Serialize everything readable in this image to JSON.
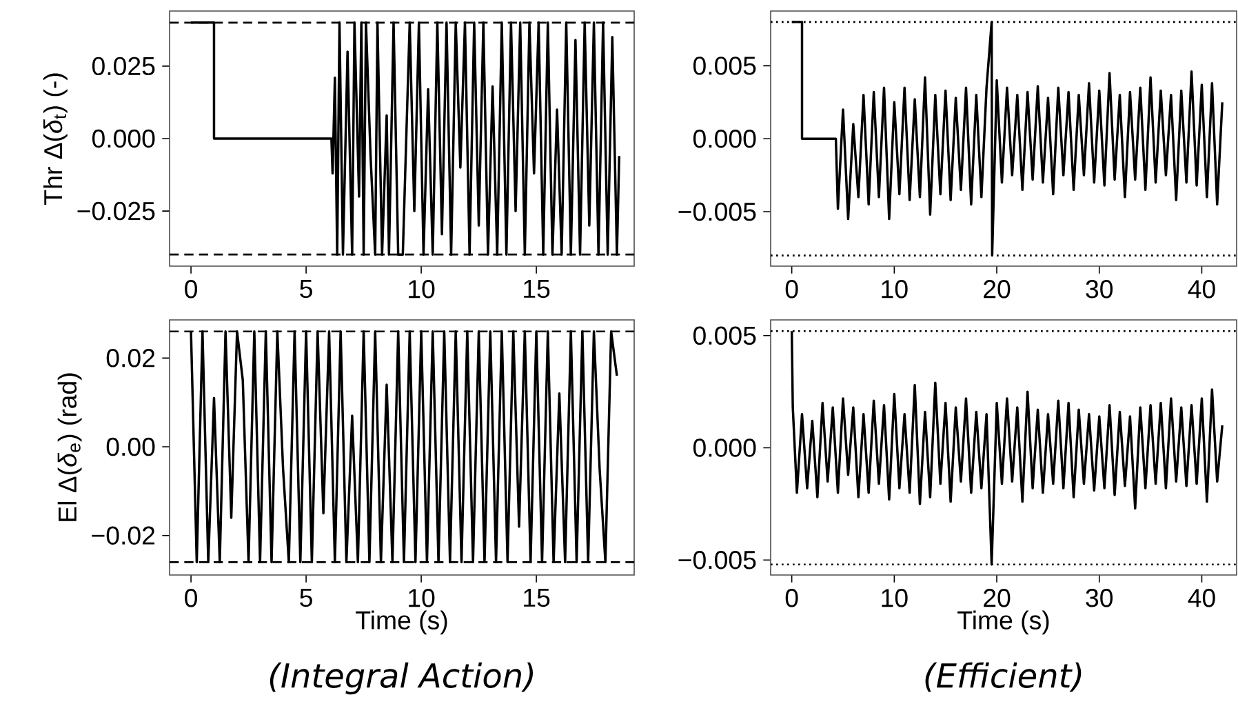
{
  "chart_data": [
    {
      "type": "line",
      "ylabel": "Thr Δ(*δ*$_{t}$) (-)",
      "color": "#000000",
      "x": [
        0,
        1,
        1,
        6.1,
        6.15,
        6.25,
        6.35,
        6.45,
        6.6,
        6.8,
        7.0,
        7.1,
        7.3,
        7.4,
        7.5,
        7.6,
        7.8,
        8.0,
        8.1,
        8.3,
        8.5,
        8.6,
        8.8,
        9.0,
        9.2,
        9.5,
        9.7,
        9.9,
        10.1,
        10.3,
        10.5,
        10.7,
        10.9,
        11.1,
        11.3,
        11.5,
        11.7,
        11.9,
        12.1,
        12.3,
        12.5,
        12.7,
        12.9,
        13.1,
        13.3,
        13.5,
        13.7,
        13.9,
        14.1,
        14.3,
        14.5,
        14.7,
        14.9,
        15.1,
        15.3,
        15.5,
        15.7,
        15.9,
        16.1,
        16.3,
        16.5,
        16.7,
        16.9,
        17.1,
        17.3,
        17.5,
        17.7,
        17.9,
        18.1,
        18.3,
        18.5,
        18.6
      ],
      "values": [
        0.04,
        0.04,
        0,
        0,
        -0.012,
        0.021,
        -0.04,
        0.04,
        -0.04,
        0.03,
        -0.04,
        0.04,
        -0.02,
        0.04,
        -0.04,
        0.04,
        -0.006,
        -0.04,
        0.04,
        -0.04,
        0.008,
        -0.04,
        0.04,
        -0.04,
        -0.04,
        0.04,
        -0.025,
        0.04,
        -0.04,
        0.017,
        -0.04,
        0.04,
        -0.033,
        0.04,
        -0.04,
        0.04,
        -0.01,
        0.04,
        -0.04,
        0.04,
        -0.03,
        0.04,
        -0.04,
        0.018,
        -0.04,
        0.04,
        -0.04,
        0.04,
        -0.025,
        0.04,
        -0.04,
        0.04,
        -0.012,
        0.04,
        -0.04,
        0.04,
        -0.04,
        0.01,
        -0.04,
        0.04,
        -0.04,
        0.034,
        -0.04,
        0.04,
        -0.03,
        0.04,
        -0.04,
        0.04,
        -0.04,
        0.035,
        -0.04,
        -0.006
      ],
      "xlim": [
        -0.93,
        19.25
      ],
      "ylim": [
        -0.044,
        0.044
      ],
      "xticks": [
        0,
        5,
        10,
        15
      ],
      "yticks": [
        {
          "value": -0.025,
          "label": "−0.025"
        },
        {
          "value": 0,
          "label": "0.000"
        },
        {
          "value": 0.025,
          "label": "0.025"
        }
      ],
      "ref_lines": [
        {
          "axis": "y",
          "value": 0.04,
          "color": "#000000",
          "line_style": "dashed"
        },
        {
          "axis": "y",
          "value": -0.04,
          "color": "#000000",
          "line_style": "dashed"
        }
      ]
    },
    {
      "type": "line",
      "color": "#000000",
      "x": [
        0,
        1,
        1,
        4.3,
        4.5,
        5,
        5.5,
        6,
        6.5,
        7,
        7.5,
        8,
        8.5,
        9,
        9.5,
        10,
        10.5,
        11,
        11.5,
        12,
        12.5,
        13,
        13.5,
        14,
        14.5,
        15,
        15.5,
        16,
        16.5,
        17,
        17.5,
        18,
        18.5,
        19,
        19.5,
        19.55,
        20,
        20.5,
        21,
        21.5,
        22,
        22.5,
        23,
        23.5,
        24,
        24.5,
        25,
        25.5,
        26,
        26.5,
        27,
        27.5,
        28,
        28.5,
        29,
        29.5,
        30,
        30.5,
        31,
        31.5,
        32,
        32.5,
        33,
        33.5,
        34,
        34.5,
        35,
        35.5,
        36,
        36.5,
        37,
        37.5,
        38,
        38.5,
        39,
        39.5,
        40,
        40.5,
        41,
        41.5,
        42
      ],
      "values": [
        0.008,
        0.008,
        0,
        0,
        -0.0048,
        0.002,
        -0.0055,
        0.001,
        -0.004,
        0.003,
        -0.0045,
        0.0032,
        -0.004,
        0.0035,
        -0.0055,
        0.0025,
        -0.0038,
        0.0035,
        -0.0042,
        0.0027,
        -0.004,
        0.0042,
        -0.0052,
        0.003,
        -0.0038,
        0.0033,
        -0.0042,
        0.0028,
        -0.0035,
        0.0035,
        -0.0045,
        0.003,
        -0.004,
        0.0035,
        0.008,
        -0.008,
        0.004,
        -0.003,
        0.0035,
        -0.0025,
        0.003,
        -0.0035,
        0.0032,
        -0.0028,
        0.0036,
        -0.003,
        0.0028,
        -0.0038,
        0.0035,
        -0.0025,
        0.0032,
        -0.0035,
        0.003,
        -0.0025,
        0.0038,
        -0.003,
        0.0033,
        -0.0032,
        0.0045,
        -0.0028,
        0.003,
        -0.004,
        0.0032,
        -0.0028,
        0.0035,
        -0.0035,
        0.0042,
        -0.003,
        0.0033,
        -0.0025,
        0.003,
        -0.0042,
        0.0033,
        -0.003,
        0.0046,
        -0.0032,
        0.0037,
        -0.004,
        0.0038,
        -0.0045,
        0.0025
      ],
      "xlim": [
        -2.06,
        43.4
      ],
      "ylim": [
        -0.00873,
        0.00875
      ],
      "xticks": [
        0,
        10,
        20,
        30,
        40
      ],
      "yticks": [
        {
          "value": -0.005,
          "label": "−0.005"
        },
        {
          "value": 0,
          "label": "0.000"
        },
        {
          "value": 0.005,
          "label": "0.005"
        }
      ],
      "ref_lines": [
        {
          "axis": "y",
          "value": 0.008,
          "color": "#000000",
          "line_style": "dotted"
        },
        {
          "axis": "y",
          "value": -0.008,
          "color": "#000000",
          "line_style": "dotted"
        }
      ]
    },
    {
      "type": "line",
      "ylabel": "El Δ(*δ*$_{e}$) (rad)",
      "xlabel": "Time (s)",
      "annotations": [
        "(Integral Action)"
      ],
      "color": "#000000",
      "x": [
        0,
        0.25,
        0.5,
        0.75,
        1,
        1.25,
        1.5,
        1.75,
        2,
        2.25,
        2.5,
        2.75,
        3,
        3.25,
        3.5,
        3.75,
        4,
        4.25,
        4.5,
        4.75,
        5,
        5.25,
        5.5,
        5.75,
        6,
        6.25,
        6.5,
        6.75,
        7,
        7.25,
        7.5,
        7.75,
        8,
        8.25,
        8.5,
        8.75,
        9,
        9.25,
        9.5,
        9.75,
        10,
        10.25,
        10.5,
        10.75,
        11,
        11.25,
        11.5,
        11.75,
        12,
        12.25,
        12.5,
        12.75,
        13,
        13.25,
        13.5,
        13.75,
        14,
        14.25,
        14.5,
        14.75,
        15,
        15.25,
        15.5,
        15.75,
        16,
        16.25,
        16.5,
        16.75,
        17,
        17.25,
        17.5,
        17.75,
        18,
        18.25,
        18.5
      ],
      "values": [
        0.026,
        -0.026,
        0.026,
        -0.026,
        0.011,
        -0.026,
        0.026,
        -0.016,
        0.026,
        0.015,
        -0.026,
        0.026,
        -0.026,
        0.026,
        -0.026,
        0.026,
        -0.005,
        -0.026,
        0.026,
        -0.026,
        0.026,
        -0.026,
        0.026,
        -0.015,
        0.026,
        -0.026,
        0.026,
        -0.026,
        0.007,
        -0.026,
        0.026,
        -0.026,
        0.026,
        -0.026,
        0.014,
        -0.026,
        0.026,
        -0.026,
        0.026,
        -0.026,
        0.026,
        -0.026,
        0.026,
        -0.026,
        0.026,
        -0.026,
        0.026,
        -0.026,
        0.026,
        -0.026,
        0.026,
        -0.026,
        0.026,
        -0.026,
        0.026,
        -0.026,
        0.026,
        -0.018,
        0.026,
        -0.026,
        0.026,
        -0.026,
        0.026,
        -0.026,
        0.012,
        -0.026,
        0.026,
        -0.026,
        0.026,
        -0.026,
        0.026,
        -0.005,
        -0.026,
        0.026,
        0.016
      ],
      "xlim": [
        -0.93,
        19.25
      ],
      "ylim": [
        -0.0289,
        0.0286
      ],
      "xticks": [
        0,
        5,
        10,
        15
      ],
      "yticks": [
        {
          "value": -0.02,
          "label": "−0.02"
        },
        {
          "value": 0,
          "label": "0.00"
        },
        {
          "value": 0.02,
          "label": "0.02"
        }
      ],
      "ref_lines": [
        {
          "axis": "y",
          "value": 0.026,
          "color": "#000000",
          "line_style": "dashed"
        },
        {
          "axis": "y",
          "value": -0.026,
          "color": "#000000",
          "line_style": "dashed"
        }
      ]
    },
    {
      "type": "line",
      "xlabel": "Time (s)",
      "annotations": [
        "(Efficient)"
      ],
      "color": "#000000",
      "x": [
        0,
        0.1,
        0.5,
        1,
        1.5,
        2,
        2.5,
        3,
        3.5,
        4,
        4.5,
        5,
        5.5,
        6,
        6.5,
        7,
        7.5,
        8,
        8.5,
        9,
        9.5,
        10,
        10.5,
        11,
        11.5,
        12,
        12.5,
        13,
        13.5,
        14,
        14.5,
        15,
        15.5,
        16,
        16.5,
        17,
        17.5,
        18,
        18.5,
        19,
        19.5,
        20,
        20.5,
        21,
        21.5,
        22,
        22.5,
        23,
        23.5,
        24,
        24.5,
        25,
        25.5,
        26,
        26.5,
        27,
        27.5,
        28,
        28.5,
        29,
        29.5,
        30,
        30.5,
        31,
        31.5,
        32,
        32.5,
        33,
        33.5,
        34,
        34.5,
        35,
        35.5,
        36,
        36.5,
        37,
        37.5,
        38,
        38.5,
        39,
        39.5,
        40,
        40.5,
        41,
        41.5,
        42
      ],
      "values": [
        0.0052,
        0.0018,
        -0.002,
        0.0015,
        -0.0018,
        0.0012,
        -0.0022,
        0.002,
        -0.0015,
        0.0018,
        -0.002,
        0.0022,
        -0.0012,
        0.0018,
        -0.0022,
        0.0015,
        -0.002,
        0.0021,
        -0.0016,
        0.0019,
        -0.0023,
        0.0024,
        -0.0018,
        0.0015,
        -0.002,
        0.0028,
        -0.0025,
        0.0016,
        -0.0022,
        0.0029,
        -0.0016,
        0.002,
        -0.0024,
        0.0018,
        -0.0015,
        0.0022,
        -0.002,
        0.0016,
        -0.0018,
        0.0015,
        -0.0052,
        0.002,
        -0.0016,
        0.0022,
        -0.0015,
        0.0018,
        -0.0024,
        0.0025,
        -0.0018,
        0.0017,
        -0.002,
        0.0015,
        -0.0016,
        0.0021,
        -0.0018,
        0.002,
        -0.0022,
        0.0017,
        -0.0016,
        0.0015,
        -0.0019,
        0.0014,
        -0.0018,
        0.0019,
        -0.0021,
        0.0016,
        -0.0017,
        0.0014,
        -0.0027,
        0.0018,
        -0.0018,
        0.0019,
        -0.0016,
        0.002,
        -0.0018,
        0.0022,
        -0.0015,
        0.0018,
        -0.0017,
        0.0019,
        -0.0016,
        0.0022,
        -0.0024,
        0.0026,
        -0.0015,
        0.001
      ],
      "xlim": [
        -2.06,
        43.4
      ],
      "ylim": [
        -0.00567,
        0.0057
      ],
      "xticks": [
        0,
        10,
        20,
        30,
        40
      ],
      "yticks": [
        {
          "value": -0.005,
          "label": "−0.005"
        },
        {
          "value": 0,
          "label": "0.000"
        },
        {
          "value": 0.005,
          "label": "0.005"
        }
      ],
      "ref_lines": [
        {
          "axis": "y",
          "value": 0.0052,
          "color": "#000000",
          "line_style": "dotted"
        },
        {
          "axis": "y",
          "value": -0.0052,
          "color": "#000000",
          "line_style": "dotted"
        }
      ]
    }
  ]
}
